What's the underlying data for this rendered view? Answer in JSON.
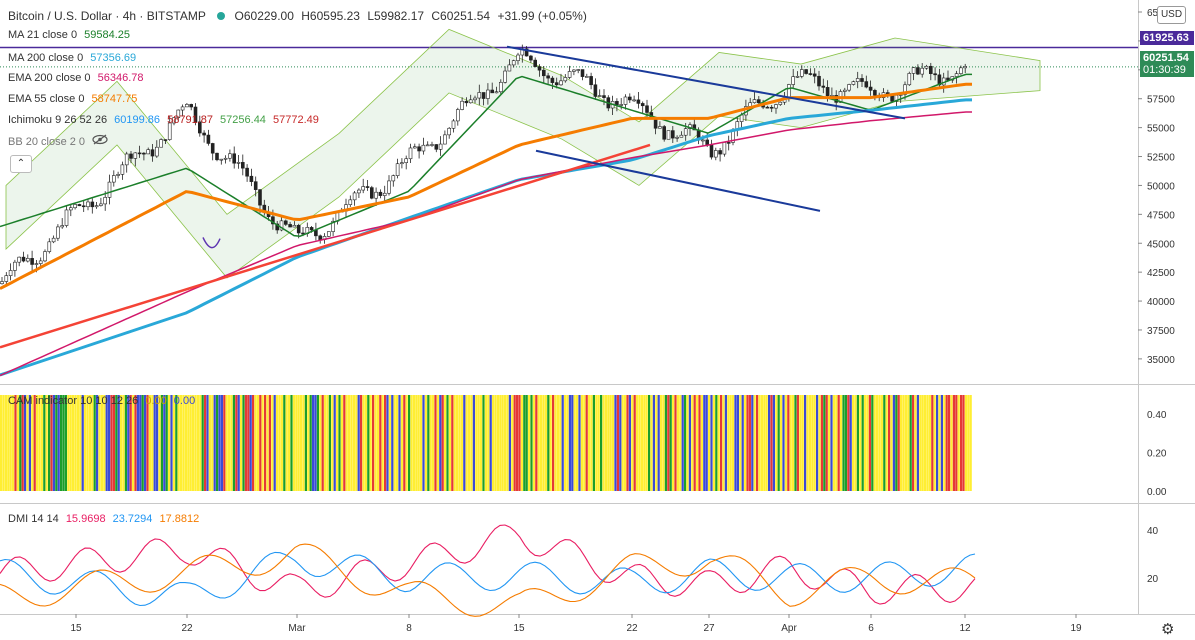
{
  "header": {
    "symbol": "Bitcoin / U.S. Dollar · 4h · BITSTAMP",
    "ohlc": {
      "o": "O60229.00",
      "h": "H60595.23",
      "l": "L59982.17",
      "c": "C60251.54",
      "chg": "+31.99 (+0.05%)"
    }
  },
  "indicators": [
    {
      "label": "MA 21 close 0",
      "value": "59584.25",
      "color": "#1b7f2a"
    },
    {
      "label": "MA 200 close 0",
      "value": "57356.69",
      "color": "#29a8d8"
    },
    {
      "label": "EMA 200 close 0",
      "value": "56346.78",
      "color": "#d1186a"
    },
    {
      "label": "EMA 55 close 0",
      "value": "58747.75",
      "color": "#f57c00"
    },
    {
      "label": "Ichimoku 9 26 52 26",
      "values": [
        "60199.86",
        "58791.87",
        "57256.44",
        "57772.49"
      ],
      "colors": [
        "#2196f3",
        "#b71c1c",
        "#43a047",
        "#c62828"
      ]
    },
    {
      "label": "BB 20 close 2 0"
    }
  ],
  "price_axis": {
    "currency": "USD",
    "ticks": [
      "65000",
      "62500",
      "60000",
      "57500",
      "55000",
      "52500",
      "50000",
      "47500",
      "45000",
      "42500",
      "40000",
      "37500",
      "35000"
    ],
    "hline_label": "61925.63",
    "last_price": "60251.54",
    "countdown": "01:30:39",
    "hline_color": "#4a2a9a",
    "last_color": "#2e8b57"
  },
  "cam": {
    "label": "CAM indicator 10 10 12 26",
    "values": [
      "0.00",
      "0.00"
    ],
    "ticks": [
      "0.40",
      "0.20",
      "0.00"
    ]
  },
  "dmi": {
    "label": "DMI 14 14",
    "values": [
      "15.9698",
      "23.7294",
      "17.8812"
    ],
    "colors": [
      "#e91e63",
      "#2196f3",
      "#f57c00"
    ],
    "ticks": [
      "40",
      "20"
    ]
  },
  "time_axis": {
    "ticks": [
      "15",
      "22",
      "Mar",
      "8",
      "15",
      "22",
      "27",
      "Apr",
      "6",
      "12",
      "19"
    ]
  },
  "chart_data": [
    {
      "type": "line",
      "x": [
        "15",
        "22",
        "Mar",
        "8",
        "15",
        "22",
        "27",
        "Apr",
        "6",
        "12"
      ],
      "ylim": [
        33000,
        65000
      ],
      "series": [
        {
          "name": "MA 21 close 0",
          "values": [
            48500,
            51500,
            45500,
            49500,
            59500,
            56500,
            54500,
            58500,
            56500,
            59600
          ]
        },
        {
          "name": "MA 200 close 0",
          "values": [
            35800,
            39000,
            43800,
            47200,
            50500,
            52200,
            54300,
            55800,
            56500,
            57400
          ]
        },
        {
          "name": "EMA 200 close 0",
          "values": [
            36500,
            40800,
            44800,
            47000,
            50500,
            52400,
            53500,
            54800,
            55600,
            56350
          ]
        },
        {
          "name": "EMA 55 close 0",
          "values": [
            44500,
            49500,
            47000,
            49000,
            53500,
            55800,
            55800,
            57600,
            57600,
            58750
          ]
        },
        {
          "name": "Close",
          "values": [
            47500,
            56500,
            45000,
            52000,
            61000,
            57000,
            53000,
            59000,
            58000,
            60250
          ]
        }
      ]
    },
    {
      "type": "line",
      "x": [
        "15",
        "22",
        "Mar",
        "8",
        "15",
        "22",
        "27",
        "Apr",
        "6",
        "12"
      ],
      "ylim": [
        5,
        50
      ],
      "series": [
        {
          "name": "DMI 14 14",
          "values": [
            26,
            32,
            15,
            26,
            38,
            20,
            17,
            24,
            15,
            16
          ]
        },
        {
          "values": [
            18,
            12,
            28,
            20,
            21,
            18,
            22,
            20,
            20,
            24
          ]
        },
        {
          "values": [
            16,
            22,
            30,
            13,
            8,
            24,
            28,
            14,
            20,
            18
          ]
        }
      ]
    }
  ]
}
